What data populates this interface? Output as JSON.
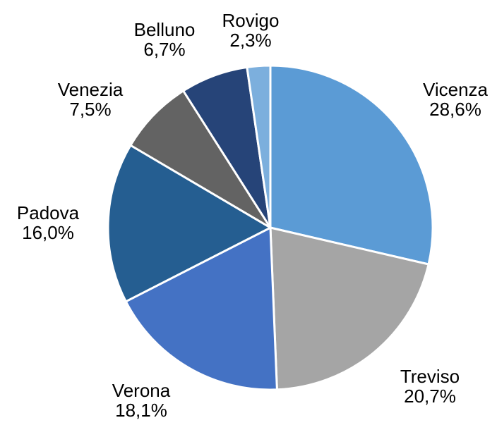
{
  "chart_data": {
    "type": "pie",
    "categories": [
      "Vicenza",
      "Treviso",
      "Verona",
      "Padova",
      "Venezia",
      "Belluno",
      "Rovigo"
    ],
    "values": [
      28.6,
      20.7,
      18.1,
      16.0,
      7.5,
      6.7,
      2.3
    ],
    "value_labels": [
      "28,6%",
      "20,7%",
      "18,1%",
      "16,0%",
      "7,5%",
      "6,7%",
      "2,3%"
    ],
    "colors": [
      "#5b9bd5",
      "#a5a5a5",
      "#4472c4",
      "#255e91",
      "#636363",
      "#264478",
      "#7cafdd"
    ]
  }
}
